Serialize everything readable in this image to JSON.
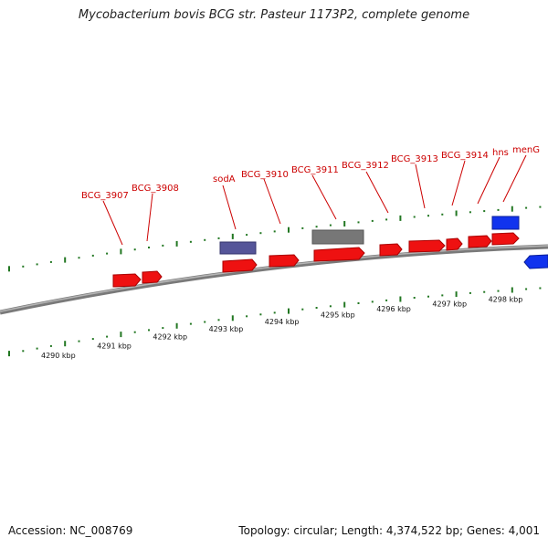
{
  "title": "Mycobacterium bovis BCG str. Pasteur 1173P2, complete genome",
  "footer": {
    "accession": "Accession: NC_008769",
    "summary": "Topology: circular; Length: 4,374,522 bp; Genes: 4,001"
  },
  "scale_labels": [
    "4290 kbp",
    "4291 kbp",
    "4292 kbp",
    "4293 kbp",
    "4294 kbp",
    "4295 kbp",
    "4296 kbp",
    "4297 kbp",
    "4298 kbp"
  ],
  "gene_labels": [
    "BCG_3907",
    "BCG_3908",
    "sodA",
    "BCG_3910",
    "BCG_3911",
    "BCG_3912",
    "BCG_3913",
    "BCG_3914",
    "hns",
    "menG"
  ],
  "colors": {
    "forward_gene": "#ee1111",
    "reverse_gene": "#1133ee",
    "misc_feature": "#555599",
    "other_feature": "#777777",
    "tick": "#227722",
    "backbone": "#888888",
    "label": "#cc0000"
  }
}
